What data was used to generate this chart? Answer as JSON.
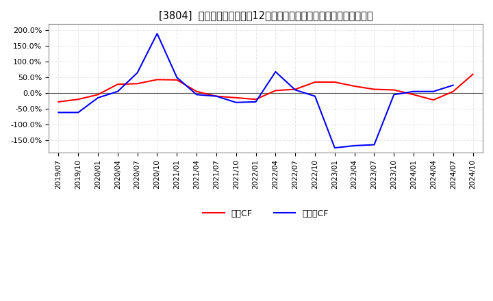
{
  "title": "[3804]  キャッシュフローの12か月移動合計の対前年同期増減率の推移",
  "title_fontsize": 10.5,
  "ylim": [
    -190,
    220
  ],
  "yticks": [
    -150,
    -100,
    -50,
    0,
    50,
    100,
    150,
    200
  ],
  "ytick_labels": [
    "-150.0%",
    "-100.0%",
    "-50.0%",
    "0.0%",
    "50.0%",
    "100.0%",
    "150.0%",
    "200.0%"
  ],
  "background_color": "#ffffff",
  "plot_bg_color": "#ffffff",
  "grid_color": "#bbbbbb",
  "x_labels": [
    "2019/07",
    "2019/10",
    "2020/01",
    "2020/04",
    "2020/07",
    "2020/10",
    "2021/01",
    "2021/04",
    "2021/07",
    "2021/10",
    "2022/01",
    "2022/04",
    "2022/07",
    "2022/10",
    "2023/01",
    "2023/04",
    "2023/07",
    "2023/10",
    "2024/01",
    "2024/04",
    "2024/07",
    "2024/10"
  ],
  "eigyo_cf": [
    -28,
    -20,
    -5,
    28,
    30,
    43,
    42,
    5,
    -10,
    -15,
    -20,
    8,
    12,
    35,
    35,
    22,
    12,
    10,
    -5,
    -22,
    5,
    60
  ],
  "free_cf": [
    -62,
    -62,
    -15,
    5,
    65,
    190,
    50,
    -5,
    -10,
    -30,
    -28,
    68,
    10,
    -10,
    -175,
    -168,
    -165,
    -5,
    5,
    5,
    25,
    null
  ],
  "eigyo_color": "#ff0000",
  "free_color": "#0000ff",
  "legend_label_eigyo": "営業CF",
  "legend_label_free": "フリーCF",
  "line_width": 1.5
}
